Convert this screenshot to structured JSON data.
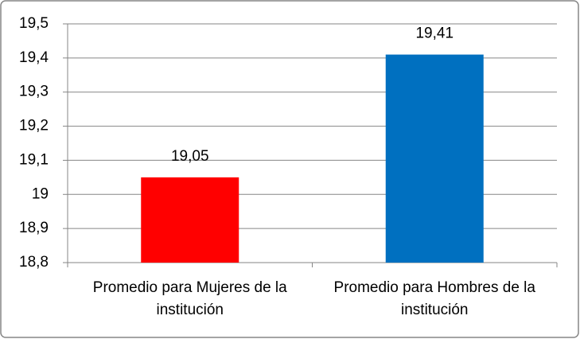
{
  "chart_data": {
    "type": "bar",
    "categories": [
      "Promedio para Mujeres de la institución",
      "Promedio para Hombres de la institución"
    ],
    "values": [
      19.05,
      19.41
    ],
    "value_labels": [
      "19,05",
      "19,41"
    ],
    "colors": [
      "#ff0000",
      "#0070c0"
    ],
    "ylim": [
      18.8,
      19.5
    ],
    "yticks": [
      {
        "value": 18.8,
        "label": "18,8"
      },
      {
        "value": 18.9,
        "label": "18,9"
      },
      19,
      {
        "value": 19.1,
        "label": "19,1"
      },
      {
        "value": 19.2,
        "label": "19,2"
      },
      {
        "value": 19.3,
        "label": "19,3"
      },
      {
        "value": 19.4,
        "label": "19,4"
      },
      {
        "value": 19.5,
        "label": "19,5"
      }
    ],
    "grid": true
  }
}
